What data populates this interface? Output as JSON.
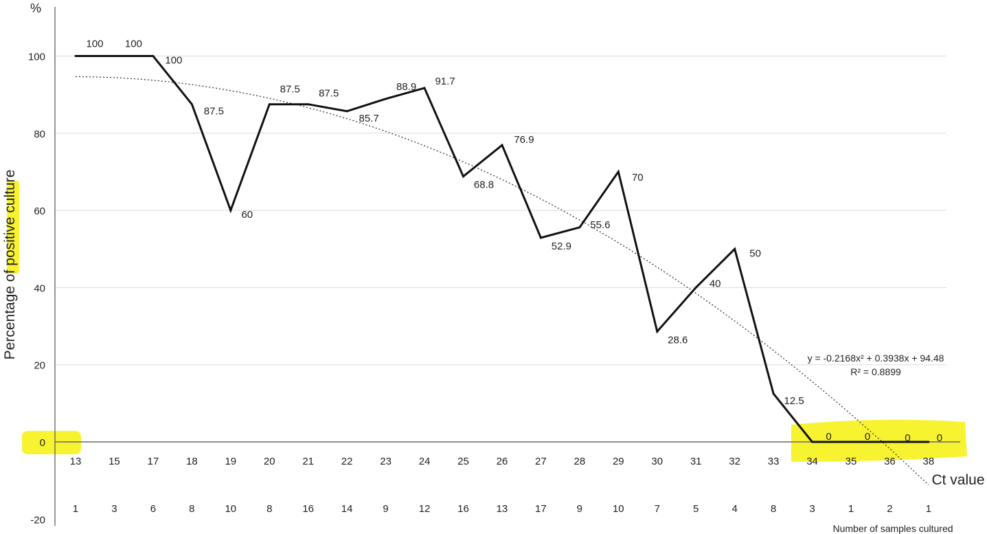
{
  "chart_data": {
    "type": "line",
    "y_unit": "%",
    "ylabel": "Percentage of positive culture",
    "xlabel": "Ct value",
    "x2label": "Number of samples cultured",
    "ylim": [
      -20,
      100
    ],
    "yticks": [
      -20,
      0,
      20,
      40,
      60,
      80,
      100
    ],
    "grid": true,
    "categories": [
      "13",
      "15",
      "17",
      "18",
      "19",
      "20",
      "21",
      "22",
      "23",
      "24",
      "25",
      "26",
      "27",
      "28",
      "29",
      "30",
      "31",
      "32",
      "33",
      "34",
      "35",
      "36",
      "38"
    ],
    "samples": [
      "1",
      "3",
      "6",
      "8",
      "10",
      "8",
      "16",
      "14",
      "9",
      "12",
      "16",
      "13",
      "17",
      "9",
      "10",
      "7",
      "5",
      "4",
      "8",
      "3",
      "1",
      "2",
      "1"
    ],
    "series": [
      {
        "values": [
          100,
          100,
          100,
          87.5,
          60,
          87.5,
          87.5,
          85.7,
          88.9,
          91.7,
          68.8,
          76.9,
          52.9,
          55.6,
          70,
          28.6,
          40,
          50,
          12.5,
          0,
          0,
          0,
          0
        ]
      }
    ],
    "trendline": {
      "type": "polynomial",
      "coefficients": [
        -0.2168,
        0.3938,
        94.48
      ],
      "equation": "y = -0.2168x² + 0.3938x + 94.48",
      "r2": "R² = 0.8899"
    },
    "highlight_color": "#f7f21a",
    "line_color": "#111111",
    "grid_color": "#d9d9d9"
  }
}
